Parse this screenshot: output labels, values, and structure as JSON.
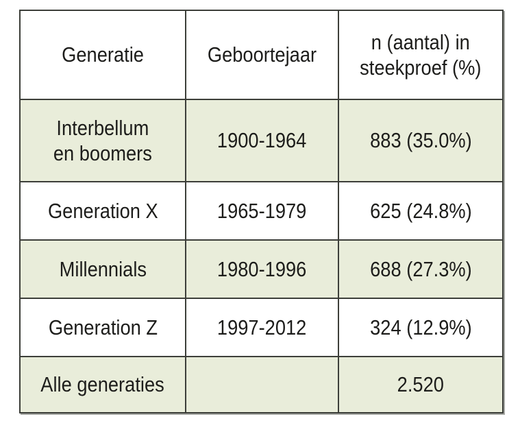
{
  "chart_data": {
    "type": "table",
    "columns": [
      "Generatie",
      "Geboortejaar",
      "n (aantal) in\nsteekproef (%)"
    ],
    "rows": [
      [
        "Interbellum\nen boomers",
        "1900-1964",
        "883 (35.0%)"
      ],
      [
        "Generation X",
        "1965-1979",
        "625 (24.8%)"
      ],
      [
        "Millennials",
        "1980-1996",
        "688 (27.3%)"
      ],
      [
        "Generation Z",
        "1997-2012",
        "324 (12.9%)"
      ],
      [
        "Alle generaties",
        "",
        "2.520"
      ]
    ],
    "parsed": {
      "generations": [
        {
          "name": "Interbellum en boomers",
          "birth_years": "1900-1964",
          "n": 883,
          "percent": 35.0
        },
        {
          "name": "Generation X",
          "birth_years": "1965-1979",
          "n": 625,
          "percent": 24.8
        },
        {
          "name": "Millennials",
          "birth_years": "1980-1996",
          "n": 688,
          "percent": 27.3
        },
        {
          "name": "Generation Z",
          "birth_years": "1997-2012",
          "n": 324,
          "percent": 12.9
        }
      ],
      "total": {
        "name": "Alle generaties",
        "n": 2520
      }
    },
    "layout": {
      "header_background": "#ffffff",
      "alt_row_background": "#e9edda",
      "row_background": "#ffffff",
      "border_color": "#3c3e39",
      "text_color": "#1d1d1b",
      "page_background": "#ffffff"
    }
  }
}
